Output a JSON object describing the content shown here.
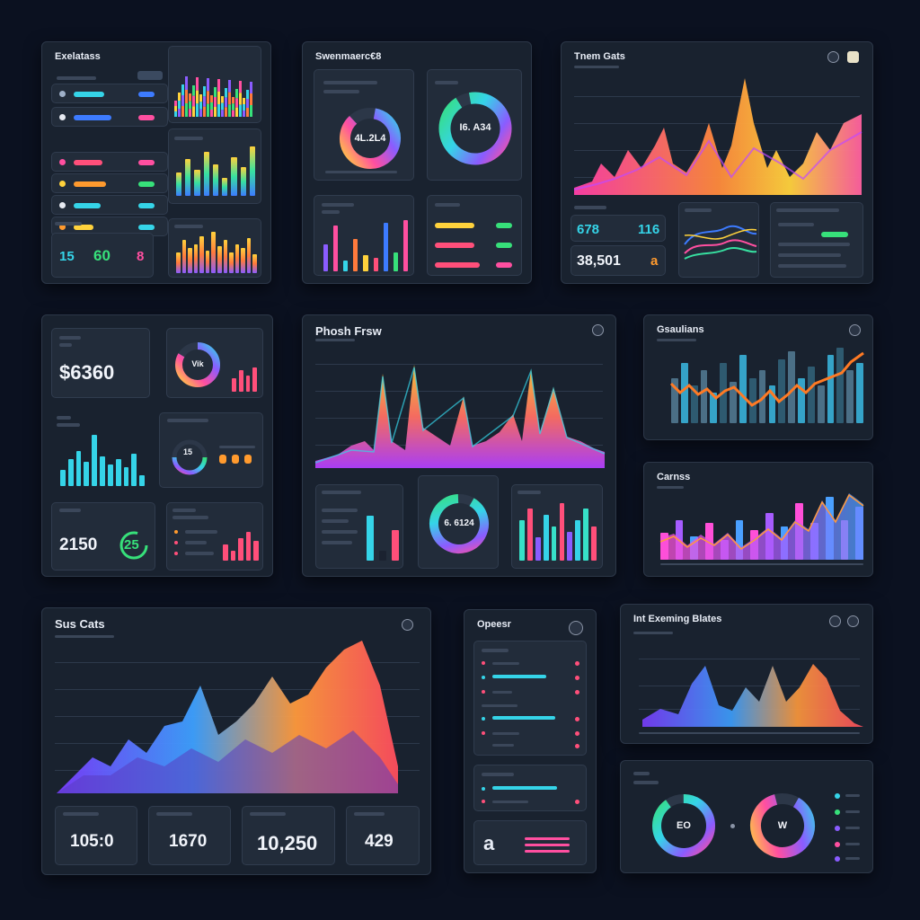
{
  "panels": {
    "p1": {
      "title": "Exelatass"
    },
    "p2": {
      "title": "Swenmaerc€8",
      "donut1_label": "4L.2L4",
      "donut2_label": "I6. A34"
    },
    "p3": {
      "title": "Tnem Gats",
      "stat1": "678",
      "stat2": "116",
      "stat3": "38,501",
      "stat3_icon": "a"
    },
    "p4": {
      "stat_money": "$6360",
      "donut_label": "Vik",
      "stat_a": "2150",
      "stat_b": "25",
      "mini_label": "15"
    },
    "p5": {
      "title": "Phosh Frsw",
      "donut_label": "6. 6124"
    },
    "p6": {
      "title": "Gsaulians"
    },
    "p7": {
      "title": "Carnss"
    },
    "p8": {
      "title": "Sus Cats",
      "stats": [
        "105:0",
        "1670",
        "10,250",
        "429"
      ]
    },
    "p9": {
      "title": "Opeesr",
      "icon_letter": "a"
    },
    "p10": {
      "title": "Int Exeming Blates"
    },
    "p11": {
      "donut1_label": "EO",
      "donut2_label": "W"
    },
    "p1stats": {
      "s1": "15",
      "s2": "60",
      "s3": "8"
    }
  },
  "icons": {
    "panel_menu": "circle-menu-icon",
    "panel_settings": "settings-icon",
    "panel_square": "square-icon"
  },
  "colors": {
    "accent_pink": "#ff4fa0",
    "accent_orange": "#ff9a2e",
    "accent_cyan": "#35d4e8",
    "accent_green": "#37e07a",
    "accent_purple": "#8a5cff",
    "accent_blue": "#3d7bff"
  }
}
